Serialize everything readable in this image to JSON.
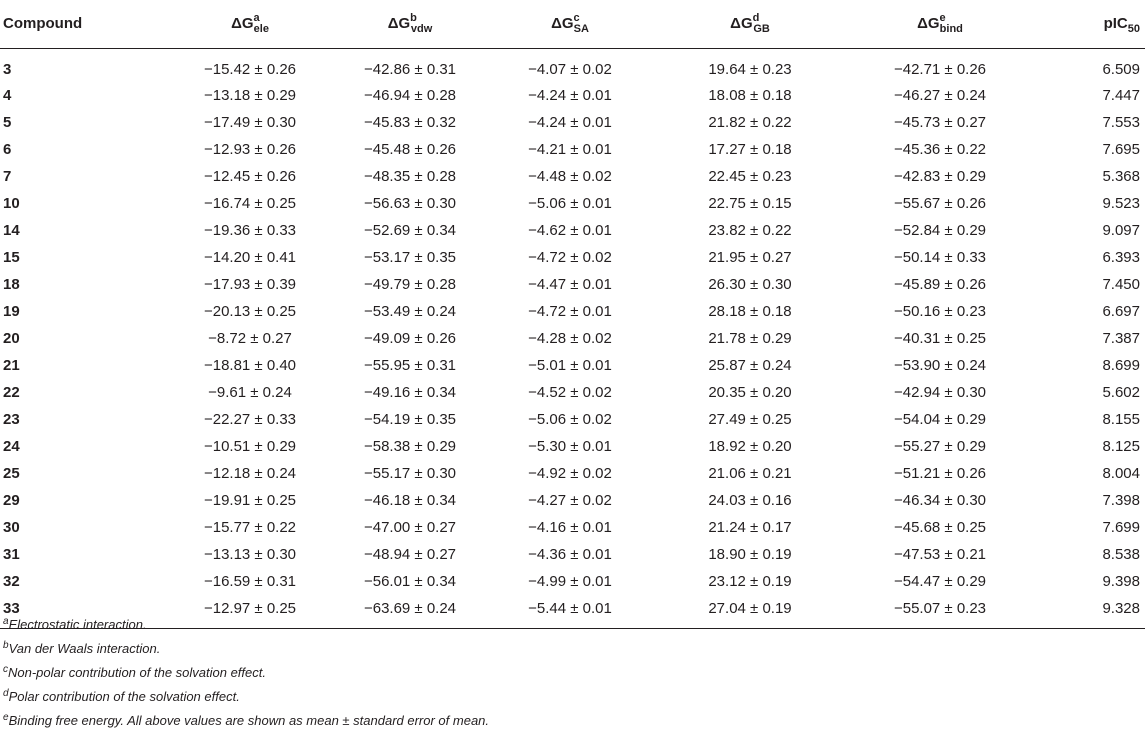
{
  "table": {
    "headers": {
      "compound": "Compound",
      "ele": {
        "symbol": "ΔG",
        "sup": "a",
        "sub": "ele"
      },
      "vdw": {
        "symbol": "ΔG",
        "sup": "b",
        "sub": "vdw"
      },
      "sa": {
        "symbol": "ΔG",
        "sup": "c",
        "sub": "SA"
      },
      "gb": {
        "symbol": "ΔG",
        "sup": "d",
        "sub": "GB"
      },
      "bind": {
        "symbol": "ΔG",
        "sup": "e",
        "sub": "bind"
      },
      "pic": {
        "main": "pIC",
        "sub": "50"
      }
    },
    "rows": [
      [
        "3",
        "−15.42 ± 0.26",
        "−42.86 ± 0.31",
        "−4.07 ± 0.02",
        "19.64 ± 0.23",
        "−42.71 ± 0.26",
        "6.509"
      ],
      [
        "4",
        "−13.18 ± 0.29",
        "−46.94 ± 0.28",
        "−4.24 ± 0.01",
        "18.08 ± 0.18",
        "−46.27 ± 0.24",
        "7.447"
      ],
      [
        "5",
        "−17.49 ± 0.30",
        "−45.83 ± 0.32",
        "−4.24 ± 0.01",
        "21.82 ± 0.22",
        "−45.73 ± 0.27",
        "7.553"
      ],
      [
        "6",
        "−12.93 ± 0.26",
        "−45.48 ± 0.26",
        "−4.21 ± 0.01",
        "17.27 ± 0.18",
        "−45.36 ± 0.22",
        "7.695"
      ],
      [
        "7",
        "−12.45 ± 0.26",
        "−48.35 ± 0.28",
        "−4.48 ± 0.02",
        "22.45 ± 0.23",
        "−42.83 ± 0.29",
        "5.368"
      ],
      [
        "10",
        "−16.74 ± 0.25",
        "−56.63 ± 0.30",
        "−5.06 ± 0.01",
        "22.75 ± 0.15",
        "−55.67 ± 0.26",
        "9.523"
      ],
      [
        "14",
        "−19.36 ± 0.33",
        "−52.69 ± 0.34",
        "−4.62 ± 0.01",
        "23.82 ± 0.22",
        "−52.84 ± 0.29",
        "9.097"
      ],
      [
        "15",
        "−14.20 ± 0.41",
        "−53.17 ± 0.35",
        "−4.72 ± 0.02",
        "21.95 ± 0.27",
        "−50.14 ± 0.33",
        "6.393"
      ],
      [
        "18",
        "−17.93 ± 0.39",
        "−49.79 ± 0.28",
        "−4.47 ± 0.01",
        "26.30 ± 0.30",
        "−45.89 ± 0.26",
        "7.450"
      ],
      [
        "19",
        "−20.13 ± 0.25",
        "−53.49 ± 0.24",
        "−4.72 ± 0.01",
        "28.18 ± 0.18",
        "−50.16 ± 0.23",
        "6.697"
      ],
      [
        "20",
        "−8.72 ± 0.27",
        "−49.09 ± 0.26",
        "−4.28 ± 0.02",
        "21.78 ± 0.29",
        "−40.31 ± 0.25",
        "7.387"
      ],
      [
        "21",
        "−18.81 ± 0.40",
        "−55.95 ± 0.31",
        "−5.01 ± 0.01",
        "25.87 ± 0.24",
        "−53.90 ± 0.24",
        "8.699"
      ],
      [
        "22",
        "−9.61 ± 0.24",
        "−49.16 ± 0.34",
        "−4.52 ± 0.02",
        "20.35 ± 0.20",
        "−42.94 ± 0.30",
        "5.602"
      ],
      [
        "23",
        "−22.27 ± 0.33",
        "−54.19 ± 0.35",
        "−5.06 ± 0.02",
        "27.49 ± 0.25",
        "−54.04 ± 0.29",
        "8.155"
      ],
      [
        "24",
        "−10.51 ± 0.29",
        "−58.38 ± 0.29",
        "−5.30 ± 0.01",
        "18.92 ± 0.20",
        "−55.27 ± 0.29",
        "8.125"
      ],
      [
        "25",
        "−12.18 ± 0.24",
        "−55.17 ± 0.30",
        "−4.92 ± 0.02",
        "21.06 ± 0.21",
        "−51.21 ± 0.26",
        "8.004"
      ],
      [
        "29",
        "−19.91 ± 0.25",
        "−46.18 ± 0.34",
        "−4.27 ± 0.02",
        "24.03 ± 0.16",
        "−46.34 ± 0.30",
        "7.398"
      ],
      [
        "30",
        "−15.77 ± 0.22",
        "−47.00 ± 0.27",
        "−4.16 ± 0.01",
        "21.24 ± 0.17",
        "−45.68 ± 0.25",
        "7.699"
      ],
      [
        "31",
        "−13.13 ± 0.30",
        "−48.94 ± 0.27",
        "−4.36 ± 0.01",
        "18.90 ± 0.19",
        "−47.53 ± 0.21",
        "8.538"
      ],
      [
        "32",
        "−16.59 ± 0.31",
        "−56.01 ± 0.34",
        "−4.99 ± 0.01",
        "23.12 ± 0.19",
        "−54.47 ± 0.29",
        "9.398"
      ],
      [
        "33",
        "−12.97 ± 0.25",
        "−63.69 ± 0.24",
        "−5.44 ± 0.01",
        "27.04 ± 0.19",
        "−55.07 ± 0.23",
        "9.328"
      ]
    ]
  },
  "footnotes": [
    {
      "letter": "a",
      "text": "Electrostatic interaction."
    },
    {
      "letter": "b",
      "text": "Van der Waals interaction."
    },
    {
      "letter": "c",
      "text": "Non-polar contribution of the solvation effect."
    },
    {
      "letter": "d",
      "text": "Polar contribution of the solvation effect."
    },
    {
      "letter": "e",
      "text": "Binding free energy. All above values are shown as mean ± standard error of mean."
    }
  ]
}
